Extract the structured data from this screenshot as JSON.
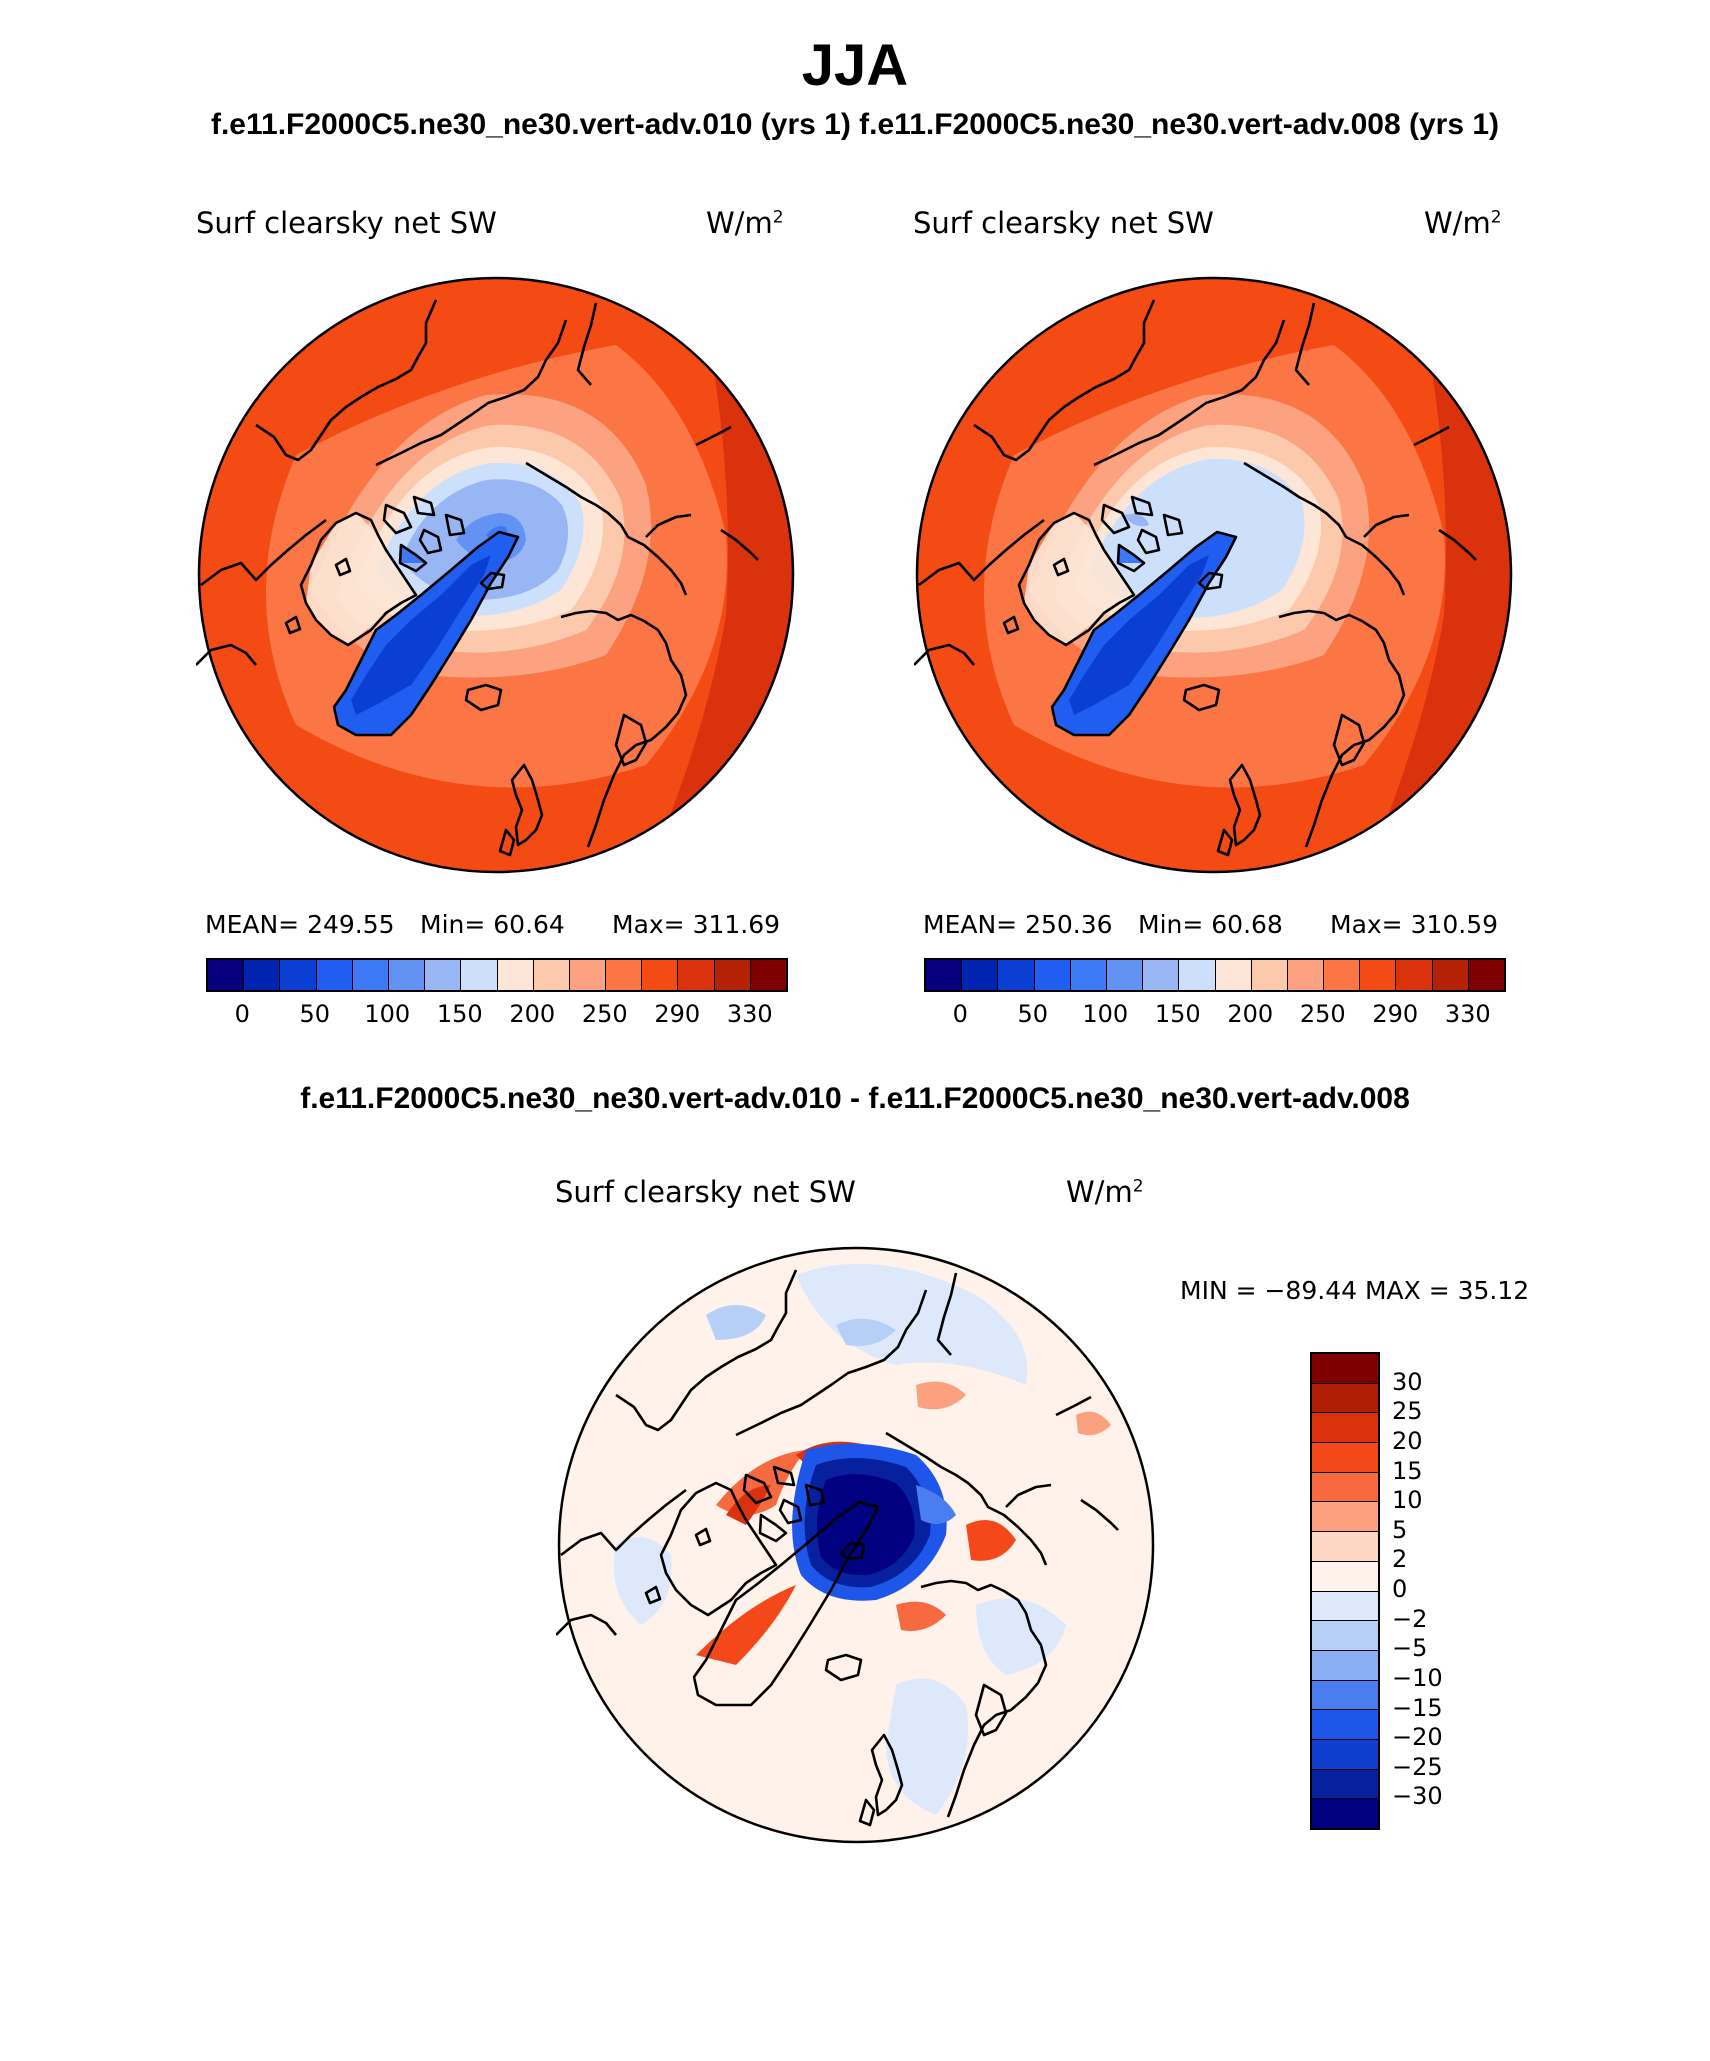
{
  "season": "JJA",
  "header": {
    "case_a": "f.e11.F2000C5.ne30_ne30.vert-adv.010 (yrs 1)",
    "case_b": "f.e11.F2000C5.ne30_ne30.vert-adv.008 (yrs 1)",
    "diff_title": "f.e11.F2000C5.ne30_ne30.vert-adv.010 - f.e11.F2000C5.ne30_ne30.vert-adv.008"
  },
  "panels": [
    {
      "variable": "Surf clearsky net SW",
      "units": "W/m",
      "units_sup": "2",
      "mean_text": "MEAN= 249.55",
      "min_text": "Min=   60.64",
      "max_text": "Max= 311.69"
    },
    {
      "variable": "Surf clearsky net SW",
      "units": "W/m",
      "units_sup": "2",
      "mean_text": "MEAN= 250.36",
      "min_text": "Min=   60.68",
      "max_text": "Max= 310.59"
    }
  ],
  "diff_panel": {
    "variable": "Surf clearsky net SW",
    "units": "W/m",
    "units_sup": "2",
    "minmax_text": "MIN = −89.44  MAX =   35.12"
  },
  "abs_colorbar": {
    "labels": [
      "0",
      "50",
      "100",
      "150",
      "200",
      "250",
      "290",
      "330"
    ],
    "colors": [
      "#06007f",
      "#0024b0",
      "#0b3fd4",
      "#1f5ef0",
      "#3d78f5",
      "#6293f2",
      "#99b6f4",
      "#cde0fb",
      "#fde6d6",
      "#fcc9ad",
      "#fca281",
      "#fb7545",
      "#f44a14",
      "#d9320c",
      "#b42105",
      "#7f0000"
    ]
  },
  "diff_colorbar": {
    "labels": [
      "30",
      "25",
      "20",
      "15",
      "10",
      "5",
      "2",
      "0",
      "−2",
      "−5",
      "−10",
      "−15",
      "−20",
      "−25",
      "−30"
    ],
    "colors": [
      "#7f0000",
      "#b01f05",
      "#d9320c",
      "#f4481a",
      "#f7693e",
      "#fba180",
      "#fdd7c2",
      "#fff2ea",
      "#dde9fb",
      "#b6cff7",
      "#8aaef2",
      "#4a7ef0",
      "#1f56ea",
      "#0f3dcc",
      "#06209e",
      "#000080"
    ]
  },
  "chart_data": {
    "type": "map",
    "projection": "north polar stereographic",
    "title": "JJA",
    "maps": [
      {
        "variable": "Surf clearsky net SW",
        "units": "W/m^2",
        "mean": 249.55,
        "min": 60.64,
        "max": 311.69
      },
      {
        "variable": "Surf clearsky net SW",
        "units": "W/m^2",
        "mean": 250.36,
        "min": 60.68,
        "max": 310.59
      },
      {
        "variable": "Surf clearsky net SW (difference)",
        "units": "W/m^2",
        "min": -89.44,
        "max": 35.12
      }
    ]
  }
}
